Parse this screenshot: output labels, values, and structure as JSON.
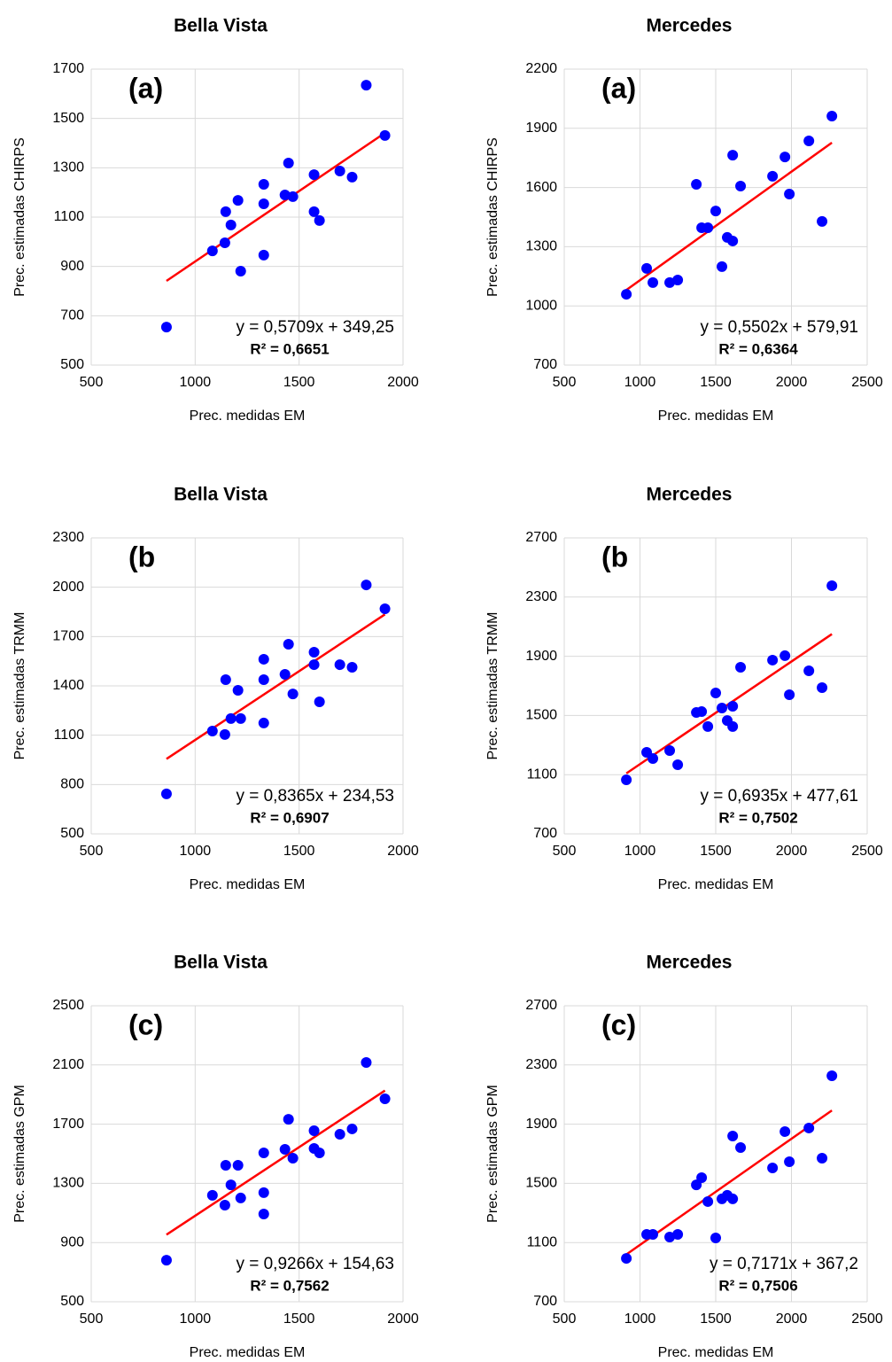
{
  "chart_data": [
    {
      "type": "scatter",
      "title": "Bella Vista",
      "panel_label": "(a)",
      "x_label": "Prec. medidas EM",
      "y_label": "Prec. estimadas CHIRPS",
      "x": [
        862,
        1083,
        1143,
        1147,
        1172,
        1206,
        1219,
        1330,
        1330,
        1330,
        1432,
        1449,
        1470,
        1572,
        1572,
        1598,
        1696,
        1755,
        1823,
        1913
      ],
      "values": [
        654,
        963,
        996,
        1122,
        1068,
        1168,
        881,
        1154,
        1233,
        946,
        1190,
        1319,
        1183,
        1272,
        1122,
        1086,
        1287,
        1262,
        1635,
        1431
      ],
      "color": "#0000ff",
      "xlim": [
        500,
        2000
      ],
      "xticks": [
        500,
        1000,
        1500,
        2000
      ],
      "ylim": [
        500,
        1700
      ],
      "yticks": [
        500,
        700,
        900,
        1100,
        1300,
        1500,
        1700
      ],
      "grid": true,
      "trendline": {
        "slope": 0.5709,
        "intercept": 349.25,
        "color": "#ff0000",
        "equation": "y = 0,5709x + 349,25",
        "r_squared": "R² = 0,6651"
      }
    },
    {
      "type": "scatter",
      "title": "Mercedes",
      "panel_label": "(a)",
      "x_label": "Prec. medidas EM",
      "y_label": "Prec. estimadas CHIRPS",
      "x": [
        910,
        1044,
        1085,
        1196,
        1249,
        1372,
        1407,
        1448,
        1500,
        1541,
        1576,
        1612,
        1612,
        1664,
        1875,
        1957,
        1986,
        2115,
        2202,
        2267
      ],
      "values": [
        1059,
        1190,
        1118,
        1118,
        1131,
        1616,
        1396,
        1396,
        1481,
        1199,
        1347,
        1329,
        1764,
        1607,
        1657,
        1755,
        1567,
        1836,
        1428,
        1962
      ],
      "color": "#0000ff",
      "xlim": [
        500,
        2500
      ],
      "xticks": [
        500,
        1000,
        1500,
        2000,
        2500
      ],
      "ylim": [
        700,
        2200
      ],
      "yticks": [
        700,
        1000,
        1300,
        1600,
        1900,
        2200
      ],
      "grid": true,
      "trendline": {
        "slope": 0.5502,
        "intercept": 579.91,
        "color": "#ff0000",
        "equation": "y = 0,5502x + 579,91",
        "r_squared": "R² = 0,6364"
      }
    },
    {
      "type": "scatter",
      "title": "Bella Vista",
      "panel_label": "(b",
      "x_label": "Prec. medidas EM",
      "y_label": "Prec. estimadas TRMM",
      "x": [
        862,
        1083,
        1143,
        1147,
        1172,
        1206,
        1219,
        1330,
        1330,
        1330,
        1432,
        1449,
        1470,
        1572,
        1572,
        1598,
        1696,
        1755,
        1823,
        1913
      ],
      "values": [
        743,
        1125,
        1104,
        1438,
        1201,
        1373,
        1201,
        1562,
        1438,
        1174,
        1470,
        1653,
        1351,
        1605,
        1529,
        1303,
        1529,
        1513,
        2014,
        1869
      ],
      "color": "#0000ff",
      "xlim": [
        500,
        2000
      ],
      "xticks": [
        500,
        1000,
        1500,
        2000
      ],
      "ylim": [
        500,
        2300
      ],
      "yticks": [
        500,
        800,
        1100,
        1400,
        1700,
        2000,
        2300
      ],
      "grid": true,
      "trendline": {
        "slope": 0.8365,
        "intercept": 234.53,
        "color": "#ff0000",
        "equation": "y = 0,8365x + 234,53",
        "r_squared": "R² = 0,6907"
      }
    },
    {
      "type": "scatter",
      "title": "Mercedes",
      "panel_label": "(b",
      "x_label": "Prec. medidas EM",
      "y_label": "Prec. estimadas TRMM",
      "x": [
        910,
        1044,
        1085,
        1196,
        1249,
        1372,
        1407,
        1448,
        1500,
        1541,
        1576,
        1612,
        1612,
        1664,
        1875,
        1957,
        1986,
        2115,
        2202,
        2267
      ],
      "values": [
        1065,
        1251,
        1209,
        1263,
        1167,
        1520,
        1526,
        1425,
        1652,
        1550,
        1466,
        1562,
        1425,
        1826,
        1874,
        1904,
        1640,
        1802,
        1688,
        2377
      ],
      "color": "#0000ff",
      "xlim": [
        500,
        2500
      ],
      "xticks": [
        500,
        1000,
        1500,
        2000,
        2500
      ],
      "ylim": [
        700,
        2700
      ],
      "yticks": [
        700,
        1100,
        1500,
        1900,
        2300,
        2700
      ],
      "grid": true,
      "trendline": {
        "slope": 0.6935,
        "intercept": 477.61,
        "color": "#ff0000",
        "equation": "y = 0,6935x + 477,61",
        "r_squared": "R² = 0,7502"
      }
    },
    {
      "type": "scatter",
      "title": "Bella Vista",
      "panel_label": "(c)",
      "x_label": "Prec. medidas EM",
      "y_label": "Prec. estimadas GPM",
      "x": [
        862,
        1083,
        1143,
        1147,
        1172,
        1206,
        1219,
        1330,
        1330,
        1330,
        1432,
        1449,
        1470,
        1572,
        1572,
        1598,
        1696,
        1755,
        1823,
        1913
      ],
      "values": [
        781,
        1219,
        1153,
        1422,
        1290,
        1422,
        1201,
        1506,
        1237,
        1093,
        1530,
        1733,
        1470,
        1656,
        1536,
        1506,
        1632,
        1668,
        2117,
        1871
      ],
      "color": "#0000ff",
      "xlim": [
        500,
        2000
      ],
      "xticks": [
        500,
        1000,
        1500,
        2000
      ],
      "ylim": [
        500,
        2500
      ],
      "yticks": [
        500,
        900,
        1300,
        1700,
        2100,
        2500
      ],
      "grid": true,
      "trendline": {
        "slope": 0.9266,
        "intercept": 154.63,
        "color": "#ff0000",
        "equation": "y = 0,9266x + 154,63",
        "r_squared": "R² = 0,7562"
      }
    },
    {
      "type": "scatter",
      "title": "Mercedes",
      "panel_label": "(c)",
      "x_label": "Prec. medidas EM",
      "y_label": "Prec. estimadas GPM",
      "x": [
        910,
        1044,
        1085,
        1196,
        1249,
        1372,
        1407,
        1448,
        1500,
        1541,
        1576,
        1612,
        1612,
        1664,
        1875,
        1957,
        1986,
        2115,
        2202,
        2267
      ],
      "values": [
        993,
        1155,
        1155,
        1137,
        1155,
        1490,
        1538,
        1377,
        1131,
        1395,
        1419,
        1395,
        1820,
        1742,
        1604,
        1850,
        1646,
        1874,
        1670,
        2227
      ],
      "color": "#0000ff",
      "xlim": [
        500,
        2500
      ],
      "xticks": [
        500,
        1000,
        1500,
        2000,
        2500
      ],
      "ylim": [
        700,
        2700
      ],
      "yticks": [
        700,
        1100,
        1500,
        1900,
        2300,
        2700
      ],
      "grid": true,
      "trendline": {
        "slope": 0.7171,
        "intercept": 367.2,
        "color": "#ff0000",
        "equation": "y = 0,7171x + 367,2",
        "r_squared": "R² = 0,7506"
      }
    }
  ]
}
